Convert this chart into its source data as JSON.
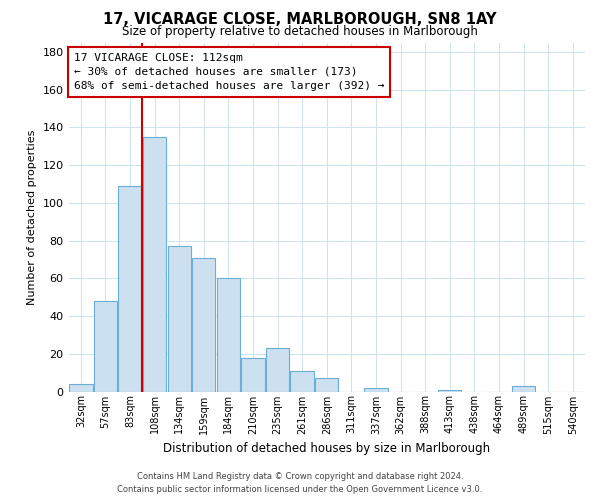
{
  "title": "17, VICARAGE CLOSE, MARLBOROUGH, SN8 1AY",
  "subtitle": "Size of property relative to detached houses in Marlborough",
  "xlabel": "Distribution of detached houses by size in Marlborough",
  "ylabel": "Number of detached properties",
  "bar_color": "#cce0f0",
  "bar_edge_color": "#6baed6",
  "vline_color": "#cc0000",
  "categories": [
    "32sqm",
    "57sqm",
    "83sqm",
    "108sqm",
    "134sqm",
    "159sqm",
    "184sqm",
    "210sqm",
    "235sqm",
    "261sqm",
    "286sqm",
    "311sqm",
    "337sqm",
    "362sqm",
    "388sqm",
    "413sqm",
    "438sqm",
    "464sqm",
    "489sqm",
    "515sqm",
    "540sqm"
  ],
  "values": [
    4,
    48,
    109,
    135,
    77,
    71,
    60,
    18,
    23,
    11,
    7,
    0,
    2,
    0,
    0,
    1,
    0,
    0,
    3,
    0,
    0
  ],
  "vline_index": 3,
  "ylim": [
    0,
    185
  ],
  "yticks": [
    0,
    20,
    40,
    60,
    80,
    100,
    120,
    140,
    160,
    180
  ],
  "annotation_title": "17 VICARAGE CLOSE: 112sqm",
  "annotation_line1": "← 30% of detached houses are smaller (173)",
  "annotation_line2": "68% of semi-detached houses are larger (392) →",
  "annotation_box_color": "#ffffff",
  "annotation_box_edge": "#cc0000",
  "footer1": "Contains HM Land Registry data © Crown copyright and database right 2024.",
  "footer2": "Contains public sector information licensed under the Open Government Licence v3.0.",
  "background_color": "#ffffff",
  "grid_color": "#d0e4f0"
}
